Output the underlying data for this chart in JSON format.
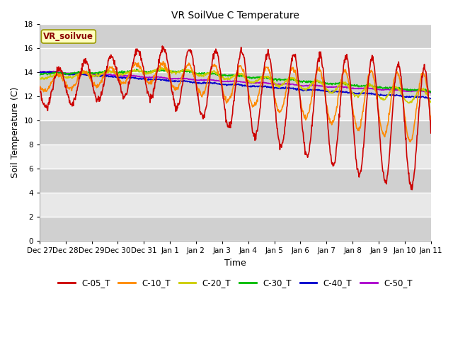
{
  "title": "VR SoilVue C Temperature",
  "xlabel": "Time",
  "ylabel": "Soil Temperature (C)",
  "ylim": [
    0,
    18
  ],
  "yticks": [
    0,
    2,
    4,
    6,
    8,
    10,
    12,
    14,
    16,
    18
  ],
  "legend_label": "VR_soilvue",
  "background_color": "#ffffff",
  "plot_bg_color": "#e0e0e0",
  "grid_color": "#ffffff",
  "series": {
    "C-05_T": {
      "color": "#cc0000",
      "lw": 1.2
    },
    "C-10_T": {
      "color": "#ff8800",
      "lw": 1.2
    },
    "C-20_T": {
      "color": "#cccc00",
      "lw": 1.2
    },
    "C-30_T": {
      "color": "#00bb00",
      "lw": 1.2
    },
    "C-40_T": {
      "color": "#0000cc",
      "lw": 1.2
    },
    "C-50_T": {
      "color": "#aa00cc",
      "lw": 1.2
    }
  },
  "x_tick_labels": [
    "Dec 27",
    "Dec 28",
    "Dec 29",
    "Dec 30",
    "Dec 31",
    "Jan 1",
    "Jan 2",
    "Jan 3",
    "Jan 4",
    "Jan 5",
    "Jan 6",
    "Jan 7",
    "Jan 8",
    "Jan 9",
    "Jan 10",
    "Jan 11"
  ],
  "num_points": 960,
  "figsize": [
    6.4,
    4.8
  ],
  "dpi": 100
}
